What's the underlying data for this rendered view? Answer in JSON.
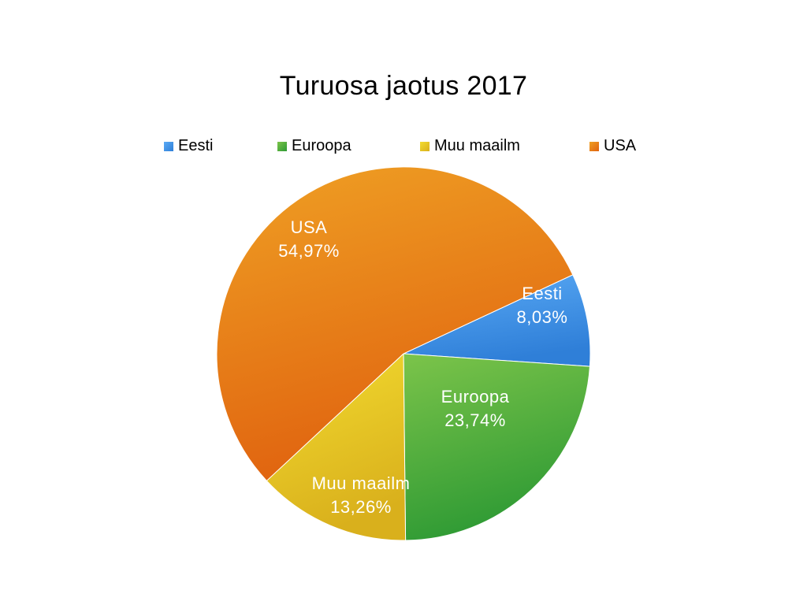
{
  "chart_data": {
    "type": "pie",
    "title": "Turuosa jaotus 2017",
    "legend_position": "top",
    "slices": [
      {
        "name": "Eesti",
        "value": 8.03,
        "label": "8,03%",
        "color": "#2f7fd8",
        "color_light": "#5aaaf5"
      },
      {
        "name": "Euroopa",
        "value": 23.74,
        "label": "23,74%",
        "color": "#2e9a34",
        "color_light": "#7cc44a"
      },
      {
        "name": "Muu maailm",
        "value": 13.26,
        "label": "13,26%",
        "color": "#d9b01c",
        "color_light": "#f3dc30"
      },
      {
        "name": "USA",
        "value": 54.97,
        "label": "54,97%",
        "color": "#e0620f",
        "color_light": "#efa024"
      }
    ]
  }
}
